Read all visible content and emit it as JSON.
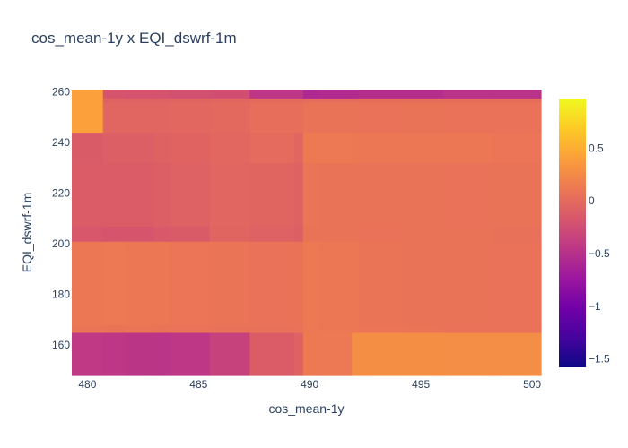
{
  "chart_data": {
    "type": "heatmap",
    "title": "cos_mean-1y x EQI_dswrf-1m",
    "xlabel": "cos_mean-1y",
    "ylabel": "EQI_dswrf-1m",
    "xlim": [
      479.3,
      500.4
    ],
    "ylim": [
      148,
      260.8
    ],
    "x_ticks": [
      480,
      485,
      490,
      495,
      500
    ],
    "y_ticks": [
      160,
      180,
      200,
      220,
      240,
      260
    ],
    "colorbar": {
      "range": [
        -1.58,
        0.97
      ],
      "ticks": [
        0.5,
        0,
        -0.5,
        -1,
        -1.5
      ],
      "tick_labels": [
        "0.5",
        "0",
        "−0.5",
        "−1",
        "−1.5"
      ],
      "colorscale": [
        "#0d0887",
        "#46039f",
        "#7201a8",
        "#9c179e",
        "#bd3786",
        "#d8576b",
        "#ed7953",
        "#fb9f3a",
        "#fdca26",
        "#f0f921"
      ]
    },
    "x_edges": [
      479.3,
      480.7,
      481.7,
      483.0,
      483.7,
      485.5,
      487.3,
      489.3,
      489.7,
      490.4,
      491.9,
      492.2,
      494.2,
      496.0,
      498.2,
      500.4
    ],
    "y_edges": [
      148,
      165,
      168,
      200,
      201,
      207,
      232,
      244,
      245,
      256,
      257.5,
      260.8
    ],
    "z": [
      [
        -0.43,
        -0.45,
        -0.46,
        -0.47,
        -0.45,
        -0.35,
        -0.12,
        -0.08,
        0.12,
        0.11,
        0.28,
        0.28,
        0.28,
        0.27,
        0.27
      ],
      [
        0.08,
        0.07,
        0.08,
        0.07,
        0.06,
        0.05,
        0.05,
        0.06,
        0.11,
        0.1,
        0.1,
        0.09,
        0.08,
        0.06,
        0.06
      ],
      [
        0.1,
        0.11,
        0.1,
        0.1,
        0.09,
        0.08,
        0.06,
        0.07,
        0.11,
        0.1,
        0.1,
        0.08,
        0.07,
        0.07,
        0.06
      ],
      [
        0.1,
        0.11,
        0.1,
        0.1,
        0.09,
        0.08,
        0.06,
        0.07,
        0.11,
        0.1,
        0.1,
        0.08,
        0.07,
        0.07,
        0.06
      ],
      [
        -0.16,
        -0.18,
        -0.18,
        -0.15,
        -0.13,
        -0.05,
        -0.08,
        -0.1,
        0.07,
        0.07,
        0.07,
        0.06,
        0.07,
        0.07,
        0.05
      ],
      [
        -0.12,
        -0.12,
        -0.12,
        -0.1,
        -0.08,
        -0.04,
        -0.05,
        -0.08,
        0.08,
        0.07,
        0.07,
        0.07,
        0.07,
        0.06,
        0.07
      ],
      [
        -0.13,
        -0.1,
        -0.1,
        -0.07,
        -0.06,
        -0.03,
        0.0,
        -0.04,
        0.12,
        0.11,
        0.1,
        0.1,
        0.1,
        0.1,
        0.09
      ],
      [
        0.41,
        -0.04,
        -0.04,
        -0.04,
        -0.03,
        -0.01,
        0.03,
        0.03,
        0.07,
        0.07,
        0.07,
        0.06,
        0.07,
        0.06,
        0.06
      ],
      [
        0.41,
        -0.04,
        -0.04,
        -0.04,
        -0.03,
        -0.01,
        0.03,
        0.03,
        0.07,
        0.07,
        0.07,
        0.06,
        0.07,
        0.06,
        0.06
      ],
      [
        0.41,
        -0.07,
        -0.08,
        -0.08,
        -0.06,
        -0.04,
        -0.01,
        -0.01,
        0.0,
        0.01,
        0.01,
        0.02,
        0.02,
        0.02,
        0.02
      ],
      [
        0.41,
        -0.18,
        -0.2,
        -0.2,
        -0.22,
        -0.24,
        -0.45,
        -0.45,
        -0.58,
        -0.56,
        -0.55,
        -0.52,
        -0.52,
        -0.48,
        -0.48
      ]
    ]
  }
}
